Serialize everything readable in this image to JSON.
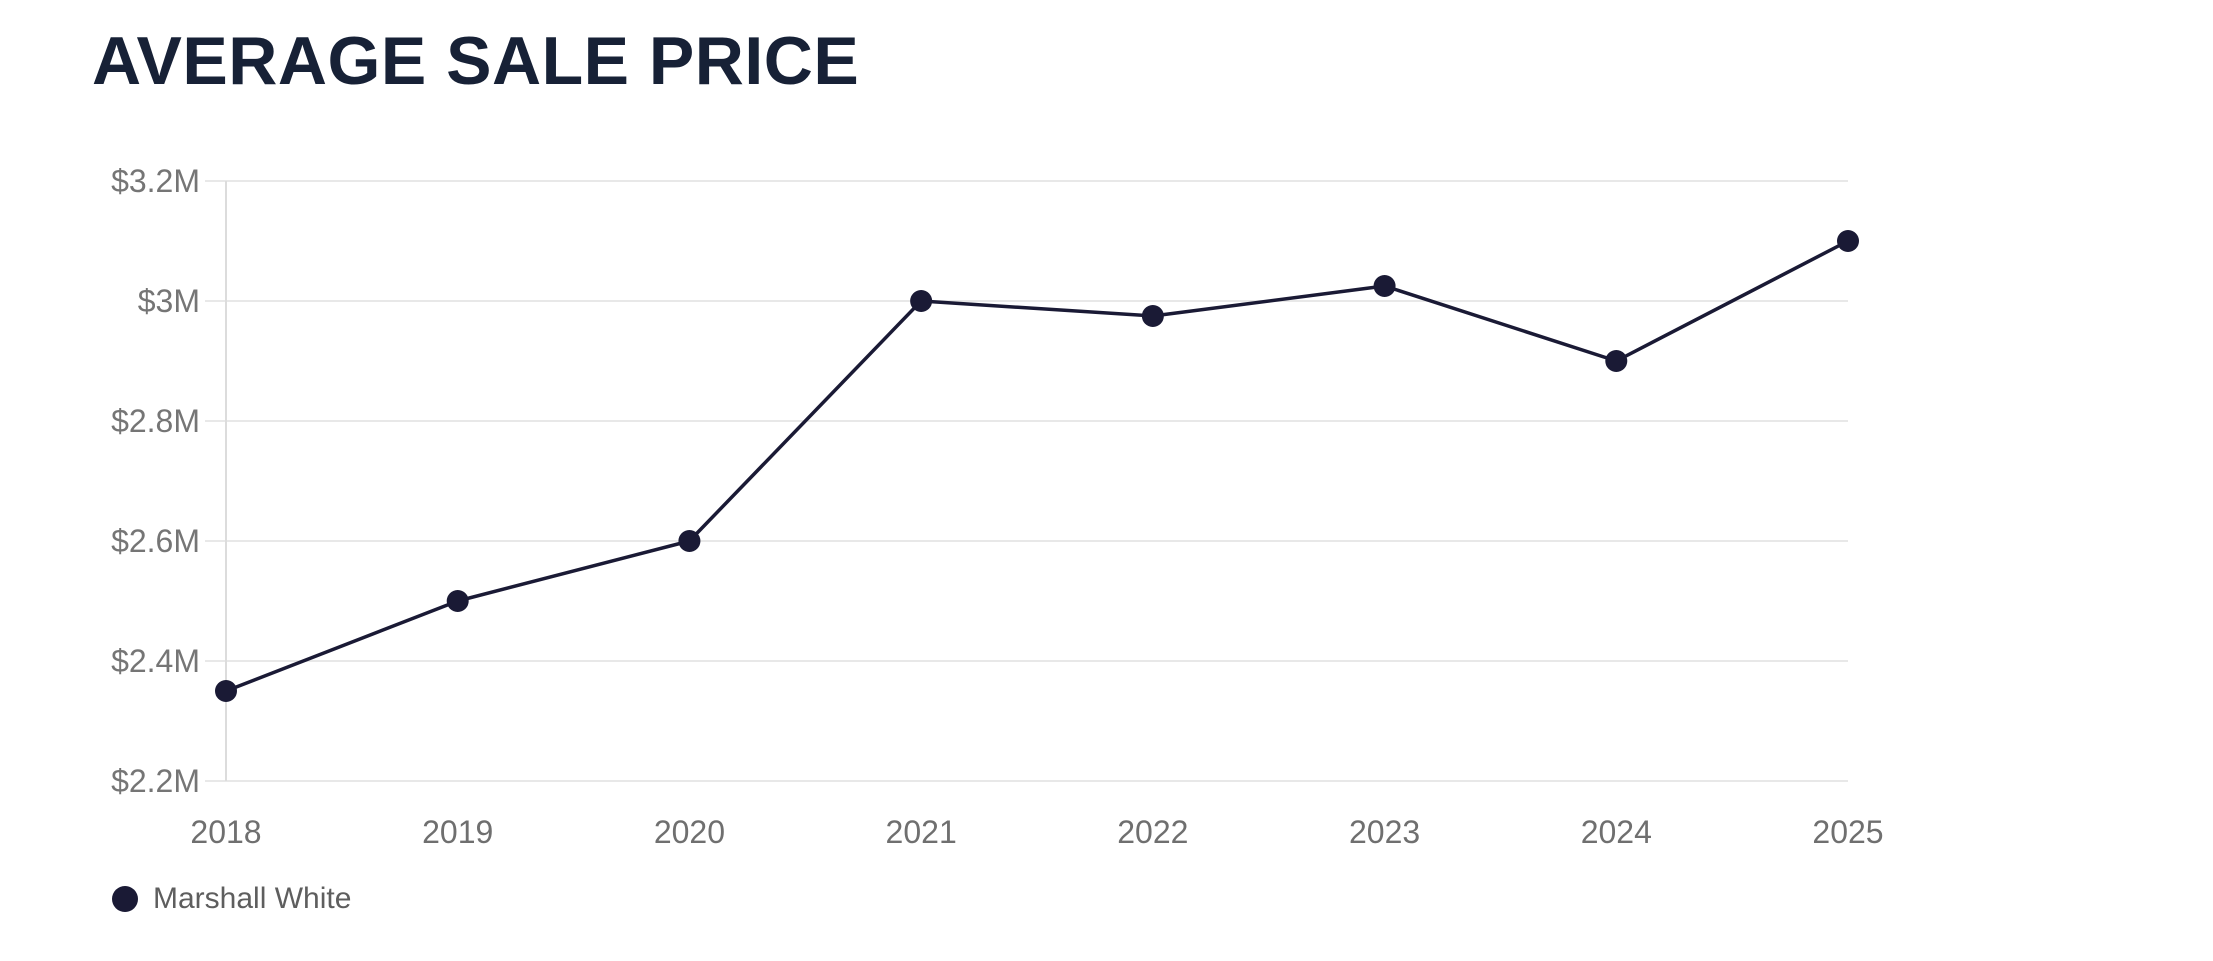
{
  "header": {
    "title": "AVERAGE SALE PRICE"
  },
  "legend": {
    "items": [
      {
        "label": "Marshall White",
        "marker_color": "#1a1a35",
        "marker_icon": "filled-circle"
      }
    ]
  },
  "colors": {
    "background": "#ffffff",
    "title_text": "#172136",
    "series_line": "#1a1a35",
    "grid_line": "#e8e8e8",
    "axis_line": "#dcdcdc",
    "y_tick_text": "#757575",
    "x_tick_text": "#6f6f6f",
    "legend_text": "#5e5e5e"
  },
  "chart_data": {
    "type": "line",
    "title": "AVERAGE SALE PRICE",
    "xlabel": "",
    "ylabel": "",
    "x": [
      "2018",
      "2019",
      "2020",
      "2021",
      "2022",
      "2023",
      "2024",
      "2025"
    ],
    "series": [
      {
        "name": "Marshall White",
        "unit": "USD millions",
        "values": [
          2.35,
          2.5,
          2.6,
          3.0,
          2.975,
          3.025,
          2.9,
          3.1
        ],
        "marker": "circle"
      }
    ],
    "y_ticks": [
      {
        "label": "$2.2M",
        "value": 2.2
      },
      {
        "label": "$2.4M",
        "value": 2.4
      },
      {
        "label": "$2.6M",
        "value": 2.6
      },
      {
        "label": "$2.8M",
        "value": 2.8
      },
      {
        "label": "$3M",
        "value": 3.0
      },
      {
        "label": "$3.2M",
        "value": 3.2
      }
    ],
    "ylim": [
      2.2,
      3.2
    ],
    "grid": "horizontal",
    "y_axis_line": "left",
    "legend_position": "bottom-left"
  }
}
